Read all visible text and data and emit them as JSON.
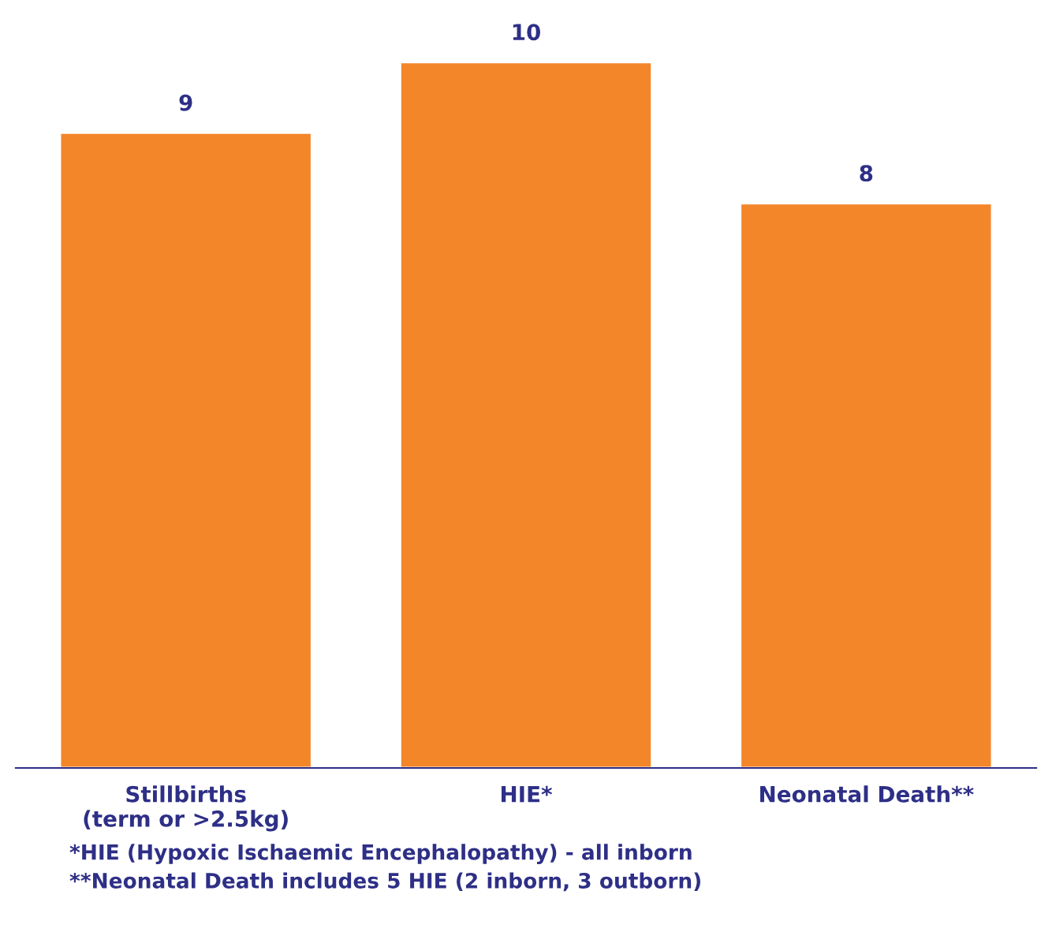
{
  "chart_data": {
    "type": "bar",
    "categories": [
      "Stillbirths\n(term or >2.5kg)",
      "HIE*",
      "Neonatal Death**"
    ],
    "values": [
      9,
      10,
      8
    ],
    "color": "#f4862a",
    "data_labels": true,
    "grid": false,
    "legend": false,
    "annotations": [
      "*HIE (Hypoxic Ischaemic Encephalopathy) - all inborn",
      "**Neonatal Death includes 5 HIE (2 inborn, 3 outborn)"
    ]
  }
}
